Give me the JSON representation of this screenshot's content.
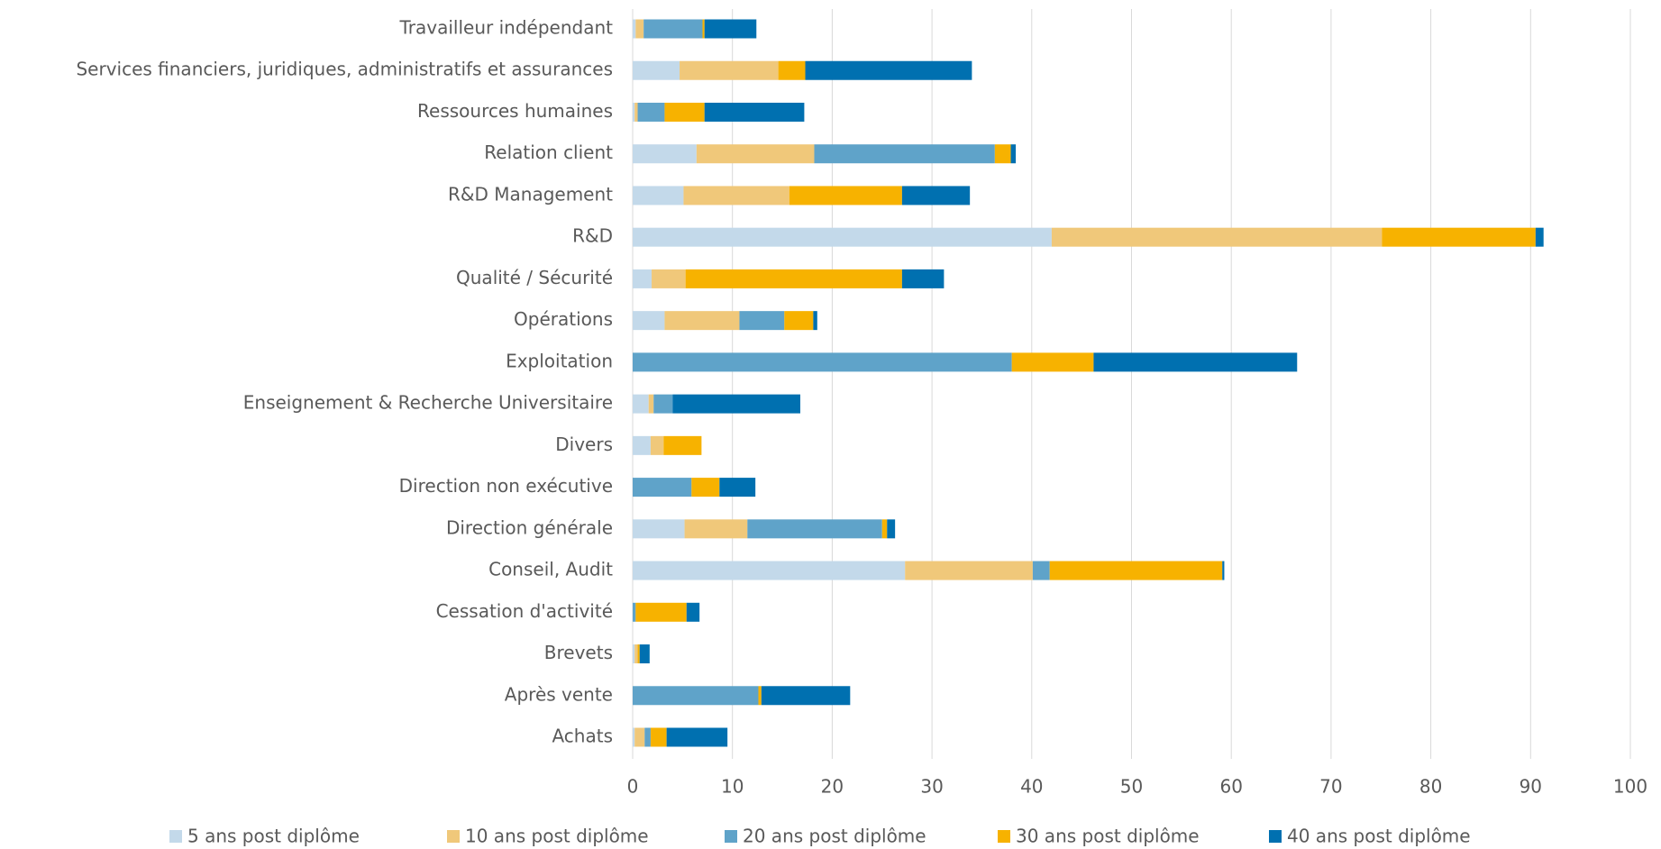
{
  "chart_data": {
    "type": "stacked_barh",
    "categories": [
      "Achats",
      "Après vente",
      "Brevets",
      "Cessation d'activité",
      "Conseil, Audit",
      "Direction générale",
      "Direction non exécutive",
      "Divers",
      "Enseignement & Recherche Universitaire",
      "Exploitation",
      "Opérations",
      "Qualité / Sécurité",
      "R&D",
      "R&D Management",
      "Relation client",
      "Ressources humaines",
      "Services financiers, juridiques, administratifs et assurances",
      "Travailleur indépendant"
    ],
    "series": [
      {
        "name": "5 ans post diplôme",
        "color": "#c3d9ea",
        "values": [
          0.2,
          0,
          0.2,
          0,
          27.3,
          5.2,
          0,
          1.8,
          1.6,
          0,
          3.2,
          1.9,
          42.0,
          5.1,
          6.4,
          0.2,
          4.7,
          0.3
        ]
      },
      {
        "name": "10 ans post diplôme",
        "color": "#f0c87a",
        "values": [
          1.0,
          0,
          0.3,
          0,
          12.8,
          6.3,
          0,
          1.3,
          0.5,
          0,
          7.5,
          3.4,
          33.1,
          10.6,
          11.8,
          0.3,
          9.9,
          0.8
        ]
      },
      {
        "name": "20 ans post diplôme",
        "color": "#5fa3c9",
        "values": [
          0.6,
          12.6,
          0,
          0.3,
          1.7,
          13.5,
          5.9,
          0,
          1.9,
          38.0,
          4.5,
          0,
          0,
          0,
          18.1,
          2.7,
          0,
          5.9
        ]
      },
      {
        "name": "30 ans post diplôme",
        "color": "#f7b200",
        "values": [
          1.6,
          0.3,
          0.2,
          5.1,
          17.3,
          0.5,
          2.8,
          3.8,
          0,
          8.2,
          2.9,
          21.7,
          15.4,
          11.3,
          1.6,
          4.0,
          2.7,
          0.2
        ]
      },
      {
        "name": "40 ans post diplôme",
        "color": "#0070b0",
        "values": [
          6.1,
          8.9,
          1.0,
          1.3,
          0.2,
          0.8,
          3.6,
          0,
          12.8,
          20.4,
          0.4,
          4.2,
          0.8,
          6.8,
          0.5,
          10.0,
          16.7,
          5.2
        ]
      }
    ],
    "xlim": [
      0,
      100
    ],
    "xticks": [
      0,
      10,
      20,
      30,
      40,
      50,
      60,
      70,
      80,
      90,
      100
    ],
    "grid": true,
    "legend": "bottom"
  }
}
